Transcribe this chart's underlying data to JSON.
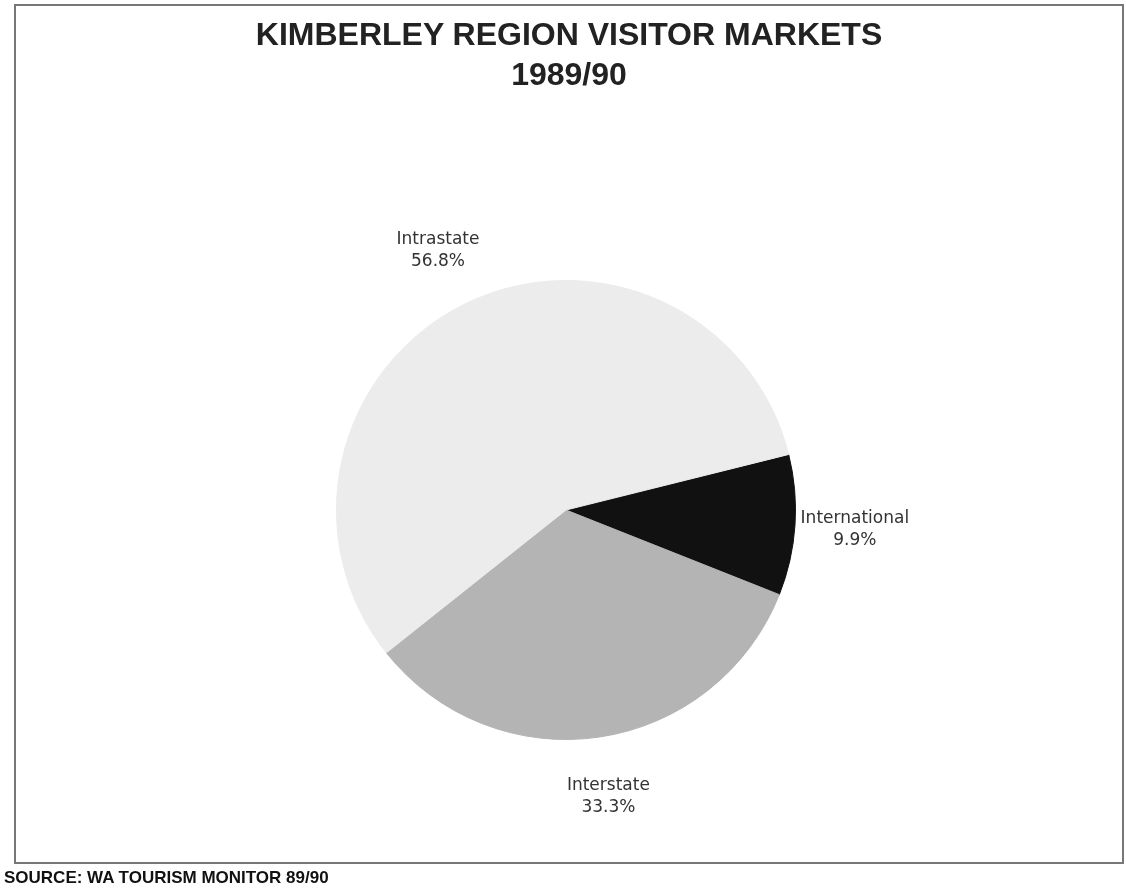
{
  "chart_data": {
    "type": "pie",
    "title": "KIMBERLEY REGION VISITOR MARKETS\n1989/90",
    "categories": [
      "International",
      "Interstate",
      "Intrastate"
    ],
    "values": [
      9.9,
      33.3,
      56.8
    ],
    "value_labels": [
      "9.9%",
      "33.3%",
      "56.8%"
    ],
    "colors": [
      "#111111",
      "#b4b4b4",
      "#ececec"
    ],
    "legend": false,
    "annotations": [
      "SOURCE: WA TOURISM MONITOR 89/90"
    ]
  }
}
